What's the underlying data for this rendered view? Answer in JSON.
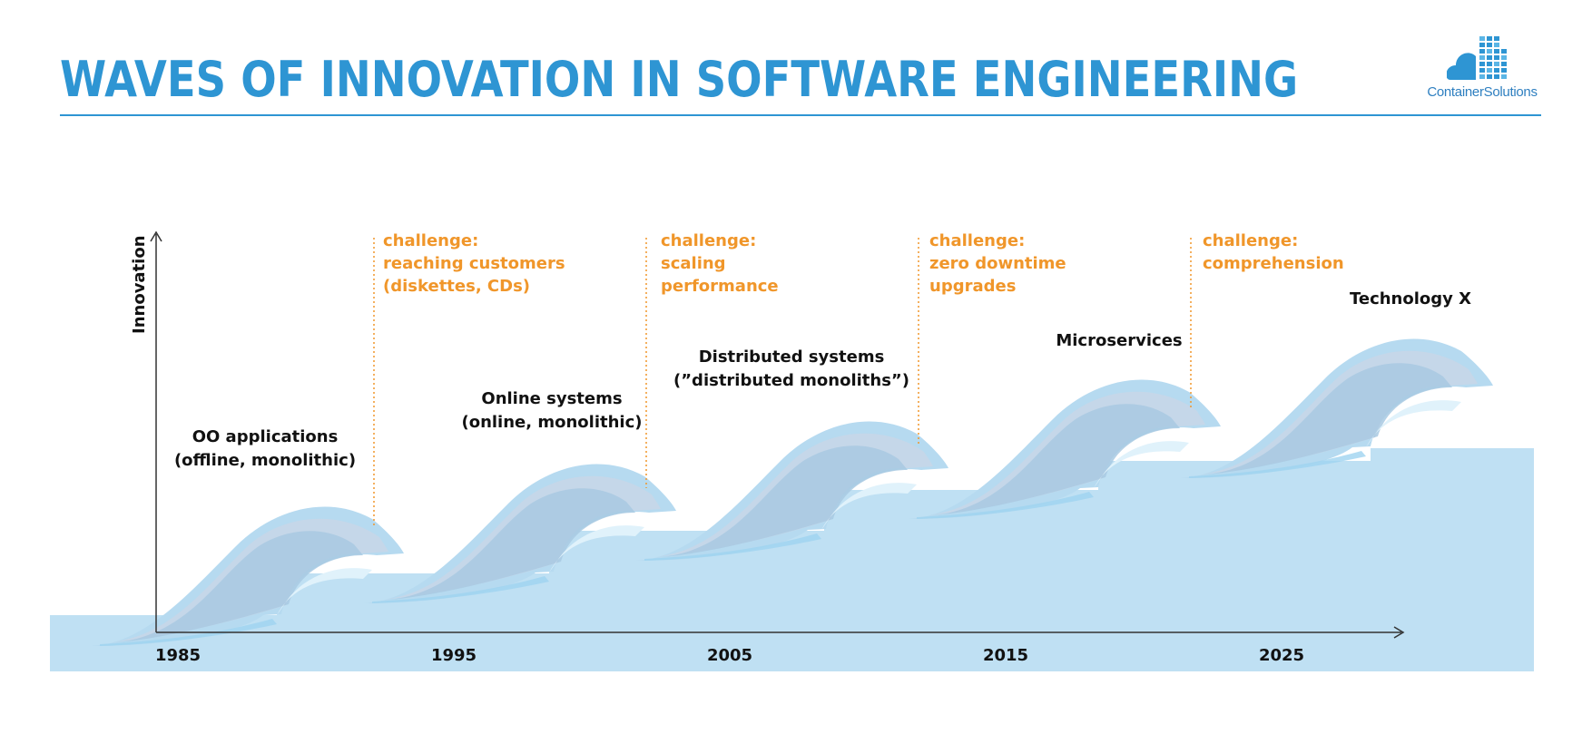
{
  "title": "WAVES OF INNOVATION IN SOFTWARE ENGINEERING",
  "logo": {
    "text": "ContainerSolutions",
    "icon": "cloud-grid-logo-icon"
  },
  "colors": {
    "title": "#2e95d3",
    "water": "#bfe0f3",
    "wave_outer": "#b6daf0",
    "wave_mid": "#c6d6e8",
    "wave_inner": "#a8c9e2",
    "wave_highlight": "#e0f2fb",
    "challenge": "#f0962a",
    "axis": "#333333"
  },
  "axes": {
    "y_label": "Innovation",
    "x_ticks": [
      "1985",
      "1995",
      "2005",
      "2015",
      "2025"
    ]
  },
  "waves": [
    {
      "lines": [
        "OO applications",
        "(offline, monolithic)"
      ]
    },
    {
      "lines": [
        "Online systems",
        "(online, monolithic)"
      ]
    },
    {
      "lines": [
        "Distributed systems",
        "(”distributed monoliths”)"
      ]
    },
    {
      "lines": [
        "Microservices"
      ]
    },
    {
      "lines": [
        "Technology X"
      ]
    }
  ],
  "challenges": [
    {
      "lines": [
        "challenge:",
        "reaching customers",
        "(diskettes, CDs)"
      ]
    },
    {
      "lines": [
        "challenge:",
        "scaling",
        "performance"
      ]
    },
    {
      "lines": [
        "challenge:",
        "zero downtime",
        "upgrades"
      ]
    },
    {
      "lines": [
        "challenge:",
        "comprehension"
      ]
    }
  ]
}
